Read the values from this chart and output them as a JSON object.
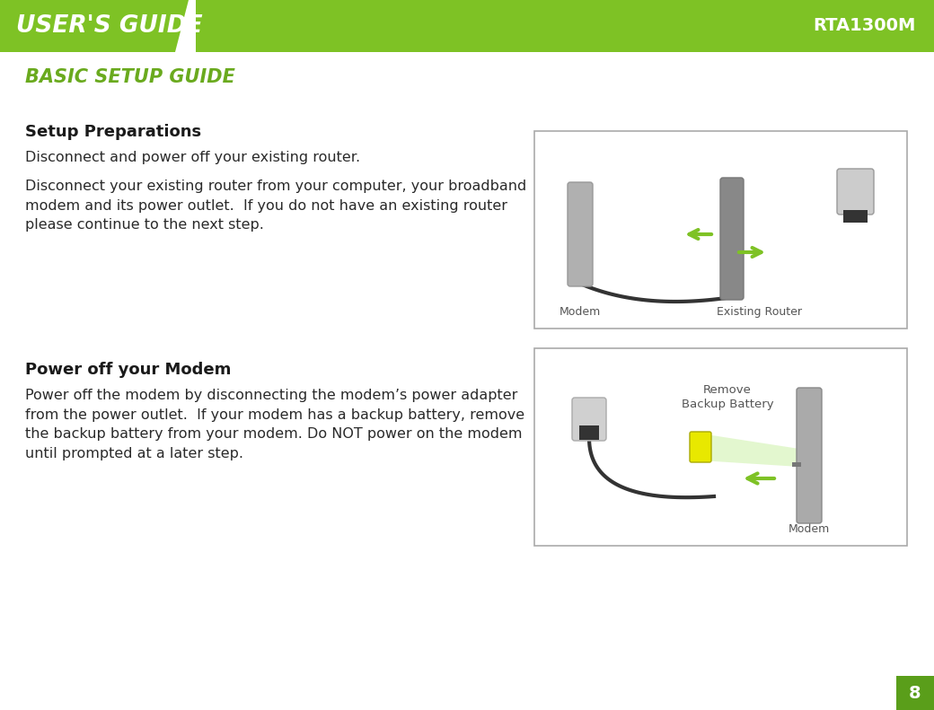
{
  "bg_color": "#ffffff",
  "header_bg": "#7ec225",
  "header_text": "USER'S GUIDE",
  "header_text_color": "#ffffff",
  "header_model": "RTA1300M",
  "header_model_color": "#ffffff",
  "page_number": "8",
  "page_num_bg": "#5a9e1a",
  "page_num_color": "#ffffff",
  "title": "BASIC SETUP GUIDE",
  "title_color": "#6aaa1e",
  "section1_heading": "Setup Preparations",
  "section1_heading_color": "#1a1a1a",
  "section1_line1": "Disconnect and power off your existing router.",
  "section1_line2": "Disconnect your existing router from your computer, your broadband\nmodem and its power outlet.  If you do not have an existing router\nplease continue to the next step.",
  "section2_heading": "Power off your Modem",
  "section2_heading_color": "#1a1a1a",
  "section2_line1": "Power off the modem by disconnecting the modem’s power adapter\nfrom the power outlet.  If your modem has a backup battery, remove\nthe backup battery from your modem. Do NOT power on the modem\nuntil prompted at a later step.",
  "img1_label_modem": "Modem",
  "img1_label_router": "Existing Router",
  "img2_label_remove": "Remove\nBackup Battery",
  "img2_label_modem": "Modem",
  "body_fontsize": 11.5,
  "heading_fontsize": 13,
  "title_fontsize": 14
}
